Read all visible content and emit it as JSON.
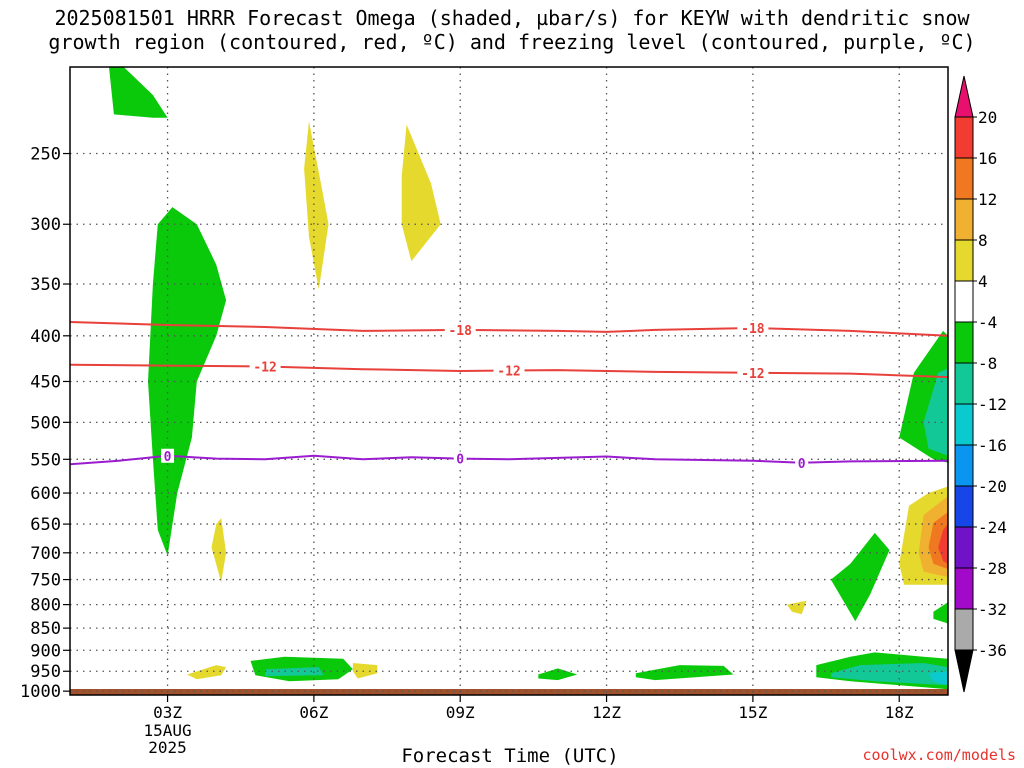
{
  "title": {
    "line1": "2025081501 HRRR Forecast Omega (shaded, µbar/s) for KEYW with dendritic snow",
    "line2": "growth region (contoured, red, ºC) and freezing level (contoured, purple, ºC)"
  },
  "credit": "coolwx.com/models",
  "colors": {
    "ground": "#a0522d",
    "temp_contour": "#e8403a",
    "freezing_contour": "#9b1ccf",
    "grid": "#555555"
  },
  "chart_data": {
    "type": "heatmap",
    "xlabel": "Forecast Time (UTC)",
    "ylabel": "",
    "x_ticks": [
      {
        "hour": 3,
        "label": "03Z",
        "sub": [
          "15AUG",
          "2025"
        ]
      },
      {
        "hour": 6,
        "label": "06Z"
      },
      {
        "hour": 9,
        "label": "09Z"
      },
      {
        "hour": 12,
        "label": "12Z"
      },
      {
        "hour": 15,
        "label": "15Z"
      },
      {
        "hour": 18,
        "label": "18Z"
      }
    ],
    "xlim": [
      1,
      19
    ],
    "y_ticks": [
      250,
      300,
      350,
      400,
      450,
      500,
      550,
      600,
      650,
      700,
      750,
      800,
      850,
      900,
      950,
      1000
    ],
    "ylim_hpa": [
      200,
      1010
    ],
    "y_scale": "log-pressure",
    "colorbar": {
      "levels": [
        20,
        16,
        12,
        8,
        4,
        -4,
        -8,
        -12,
        -16,
        -20,
        -24,
        -28,
        -32,
        -36
      ],
      "colors": [
        "#e8106e",
        "#f23c32",
        "#f07820",
        "#f0b030",
        "#e6d92e",
        "#ffffff",
        "#0ac80a",
        "#12c896",
        "#0acad0",
        "#0a96f0",
        "#1646e8",
        "#7012c8",
        "#a00ac8",
        "#aaaaaa",
        "#000000"
      ]
    },
    "contours": {
      "dgz": [
        {
          "level": -18,
          "label": "-18",
          "points": [
            [
              1,
              386
            ],
            [
              3,
              389
            ],
            [
              5,
              391
            ],
            [
              7,
              395
            ],
            [
              9,
              394
            ],
            [
              11,
              395
            ],
            [
              12,
              396
            ],
            [
              13,
              394
            ],
            [
              15,
              392
            ],
            [
              17,
              395
            ],
            [
              19,
              400
            ]
          ],
          "label_hours": [
            9,
            15
          ]
        },
        {
          "level": -12,
          "label": "-12",
          "points": [
            [
              1,
              431
            ],
            [
              3,
              432
            ],
            [
              5,
              433
            ],
            [
              7,
              436
            ],
            [
              9,
              438
            ],
            [
              11,
              437
            ],
            [
              13,
              439
            ],
            [
              15,
              440
            ],
            [
              17,
              441
            ],
            [
              19,
              445
            ]
          ],
          "label_hours": [
            5,
            10,
            15
          ]
        }
      ],
      "freezing": [
        {
          "level": 0,
          "label": "0",
          "points": [
            [
              1,
              557
            ],
            [
              2,
              552
            ],
            [
              3,
              545
            ],
            [
              4,
              549
            ],
            [
              5,
              550
            ],
            [
              6,
              545
            ],
            [
              7,
              550
            ],
            [
              8,
              547
            ],
            [
              9,
              549
            ],
            [
              10,
              550
            ],
            [
              12,
              546
            ],
            [
              13,
              550
            ],
            [
              15,
              552
            ],
            [
              16,
              555
            ],
            [
              17,
              553
            ],
            [
              19,
              552
            ]
          ],
          "label_hours": [
            3,
            9,
            16
          ]
        }
      ]
    },
    "shaded_regions": [
      {
        "omega_range": [
          -8,
          -4
        ],
        "polygon": [
          [
            1.8,
            200
          ],
          [
            2.1,
            200
          ],
          [
            2.7,
            215
          ],
          [
            3.0,
            228
          ],
          [
            2.7,
            228
          ],
          [
            1.9,
            226
          ]
        ]
      },
      {
        "omega_range": [
          -8,
          -4
        ],
        "polygon": [
          [
            3.1,
            287
          ],
          [
            3.6,
            300
          ],
          [
            4.0,
            333
          ],
          [
            4.2,
            365
          ],
          [
            4.0,
            400
          ],
          [
            3.6,
            450
          ],
          [
            3.5,
            520
          ],
          [
            3.2,
            600
          ],
          [
            3.0,
            705
          ],
          [
            2.8,
            660
          ],
          [
            2.7,
            550
          ],
          [
            2.6,
            450
          ],
          [
            2.7,
            350
          ],
          [
            2.8,
            300
          ]
        ]
      },
      {
        "omega_range": [
          4,
          8
        ],
        "polygon": [
          [
            5.9,
            230
          ],
          [
            6.2,
            280
          ],
          [
            6.3,
            300
          ],
          [
            6.1,
            355
          ],
          [
            5.9,
            310
          ],
          [
            5.8,
            260
          ]
        ]
      },
      {
        "omega_range": [
          4,
          8
        ],
        "polygon": [
          [
            7.9,
            232
          ],
          [
            8.4,
            270
          ],
          [
            8.6,
            300
          ],
          [
            8.0,
            330
          ],
          [
            7.8,
            300
          ],
          [
            7.8,
            265
          ]
        ]
      },
      {
        "omega_range": [
          4,
          8
        ],
        "polygon": [
          [
            4.1,
            640
          ],
          [
            4.2,
            700
          ],
          [
            4.1,
            755
          ],
          [
            3.9,
            690
          ],
          [
            4.0,
            650
          ]
        ]
      },
      {
        "omega_range": [
          4,
          8
        ],
        "polygon": [
          [
            3.4,
            958
          ],
          [
            4.0,
            935
          ],
          [
            4.2,
            940
          ],
          [
            4.1,
            960
          ],
          [
            3.6,
            970
          ]
        ]
      },
      {
        "omega_range": [
          4,
          8
        ],
        "polygon": [
          [
            6.8,
            930
          ],
          [
            7.3,
            935
          ],
          [
            7.3,
            955
          ],
          [
            6.9,
            968
          ],
          [
            6.8,
            950
          ]
        ]
      },
      {
        "omega_range": [
          4,
          8
        ],
        "polygon": [
          [
            15.7,
            800
          ],
          [
            16.1,
            792
          ],
          [
            16.0,
            820
          ],
          [
            15.8,
            815
          ]
        ]
      },
      {
        "omega_range": [
          -8,
          -4
        ],
        "polygon": [
          [
            4.7,
            925
          ],
          [
            5.4,
            915
          ],
          [
            6.6,
            920
          ],
          [
            6.8,
            945
          ],
          [
            6.5,
            970
          ],
          [
            5.5,
            975
          ],
          [
            4.8,
            960
          ]
        ]
      },
      {
        "omega_range": [
          -12,
          -8
        ],
        "polygon": [
          [
            5.0,
            945
          ],
          [
            6.1,
            940
          ],
          [
            6.2,
            960
          ],
          [
            5.0,
            962
          ]
        ]
      },
      {
        "omega_range": [
          -8,
          -4
        ],
        "polygon": [
          [
            10.6,
            958
          ],
          [
            11.0,
            943
          ],
          [
            11.4,
            958
          ],
          [
            11.0,
            972
          ],
          [
            10.6,
            968
          ]
        ]
      },
      {
        "omega_range": [
          -8,
          -4
        ],
        "polygon": [
          [
            12.6,
            955
          ],
          [
            13.5,
            935
          ],
          [
            14.4,
            937
          ],
          [
            14.6,
            958
          ],
          [
            13.0,
            972
          ],
          [
            12.6,
            965
          ]
        ]
      },
      {
        "omega_range": [
          -8,
          -4
        ],
        "polygon": [
          [
            16.3,
            935
          ],
          [
            17.0,
            915
          ],
          [
            17.5,
            905
          ],
          [
            18.5,
            915
          ],
          [
            19.0,
            920
          ],
          [
            19.0,
            995
          ],
          [
            17.0,
            975
          ],
          [
            16.3,
            965
          ]
        ]
      },
      {
        "omega_range": [
          -12,
          -8
        ],
        "polygon": [
          [
            16.6,
            955
          ],
          [
            17.2,
            935
          ],
          [
            18.5,
            930
          ],
          [
            19.0,
            940
          ],
          [
            19.0,
            985
          ],
          [
            17.5,
            975
          ],
          [
            16.6,
            965
          ]
        ]
      },
      {
        "omega_range": [
          -16,
          -12
        ],
        "polygon": [
          [
            18.6,
            955
          ],
          [
            19.0,
            950
          ],
          [
            19.0,
            985
          ],
          [
            18.7,
            975
          ]
        ]
      },
      {
        "omega_range": [
          -8,
          -4
        ],
        "polygon": [
          [
            17.0,
            720
          ],
          [
            17.5,
            665
          ],
          [
            17.8,
            695
          ],
          [
            17.4,
            780
          ],
          [
            17.1,
            835
          ],
          [
            16.6,
            750
          ]
        ]
      },
      {
        "omega_range": [
          -8,
          -4
        ],
        "polygon": [
          [
            18.0,
            520
          ],
          [
            18.3,
            440
          ],
          [
            18.9,
            395
          ],
          [
            19.0,
            400
          ],
          [
            19.0,
            555
          ],
          [
            18.7,
            550
          ]
        ]
      },
      {
        "omega_range": [
          -12,
          -8
        ],
        "polygon": [
          [
            18.5,
            500
          ],
          [
            18.8,
            440
          ],
          [
            19.0,
            435
          ],
          [
            19.0,
            545
          ],
          [
            18.6,
            535
          ]
        ]
      },
      {
        "omega_range": [
          -8,
          -4
        ],
        "polygon": [
          [
            18.7,
            815
          ],
          [
            19.0,
            795
          ],
          [
            19.0,
            840
          ],
          [
            18.7,
            830
          ]
        ]
      },
      {
        "omega_range": [
          4,
          8
        ],
        "polygon": [
          [
            18.0,
            720
          ],
          [
            18.2,
            620
          ],
          [
            18.6,
            600
          ],
          [
            19.0,
            590
          ],
          [
            19.0,
            760
          ],
          [
            18.1,
            760
          ]
        ]
      },
      {
        "omega_range": [
          8,
          12
        ],
        "polygon": [
          [
            18.4,
            700
          ],
          [
            18.5,
            635
          ],
          [
            19.0,
            605
          ],
          [
            19.0,
            745
          ],
          [
            18.5,
            735
          ]
        ]
      },
      {
        "omega_range": [
          12,
          16
        ],
        "polygon": [
          [
            18.6,
            690
          ],
          [
            18.7,
            648
          ],
          [
            19.0,
            630
          ],
          [
            19.0,
            730
          ],
          [
            18.7,
            720
          ]
        ]
      },
      {
        "omega_range": [
          16,
          20
        ],
        "polygon": [
          [
            18.8,
            690
          ],
          [
            18.9,
            660
          ],
          [
            19.0,
            650
          ],
          [
            19.0,
            720
          ],
          [
            18.9,
            715
          ]
        ]
      }
    ],
    "ground_level_hpa": 1010
  }
}
